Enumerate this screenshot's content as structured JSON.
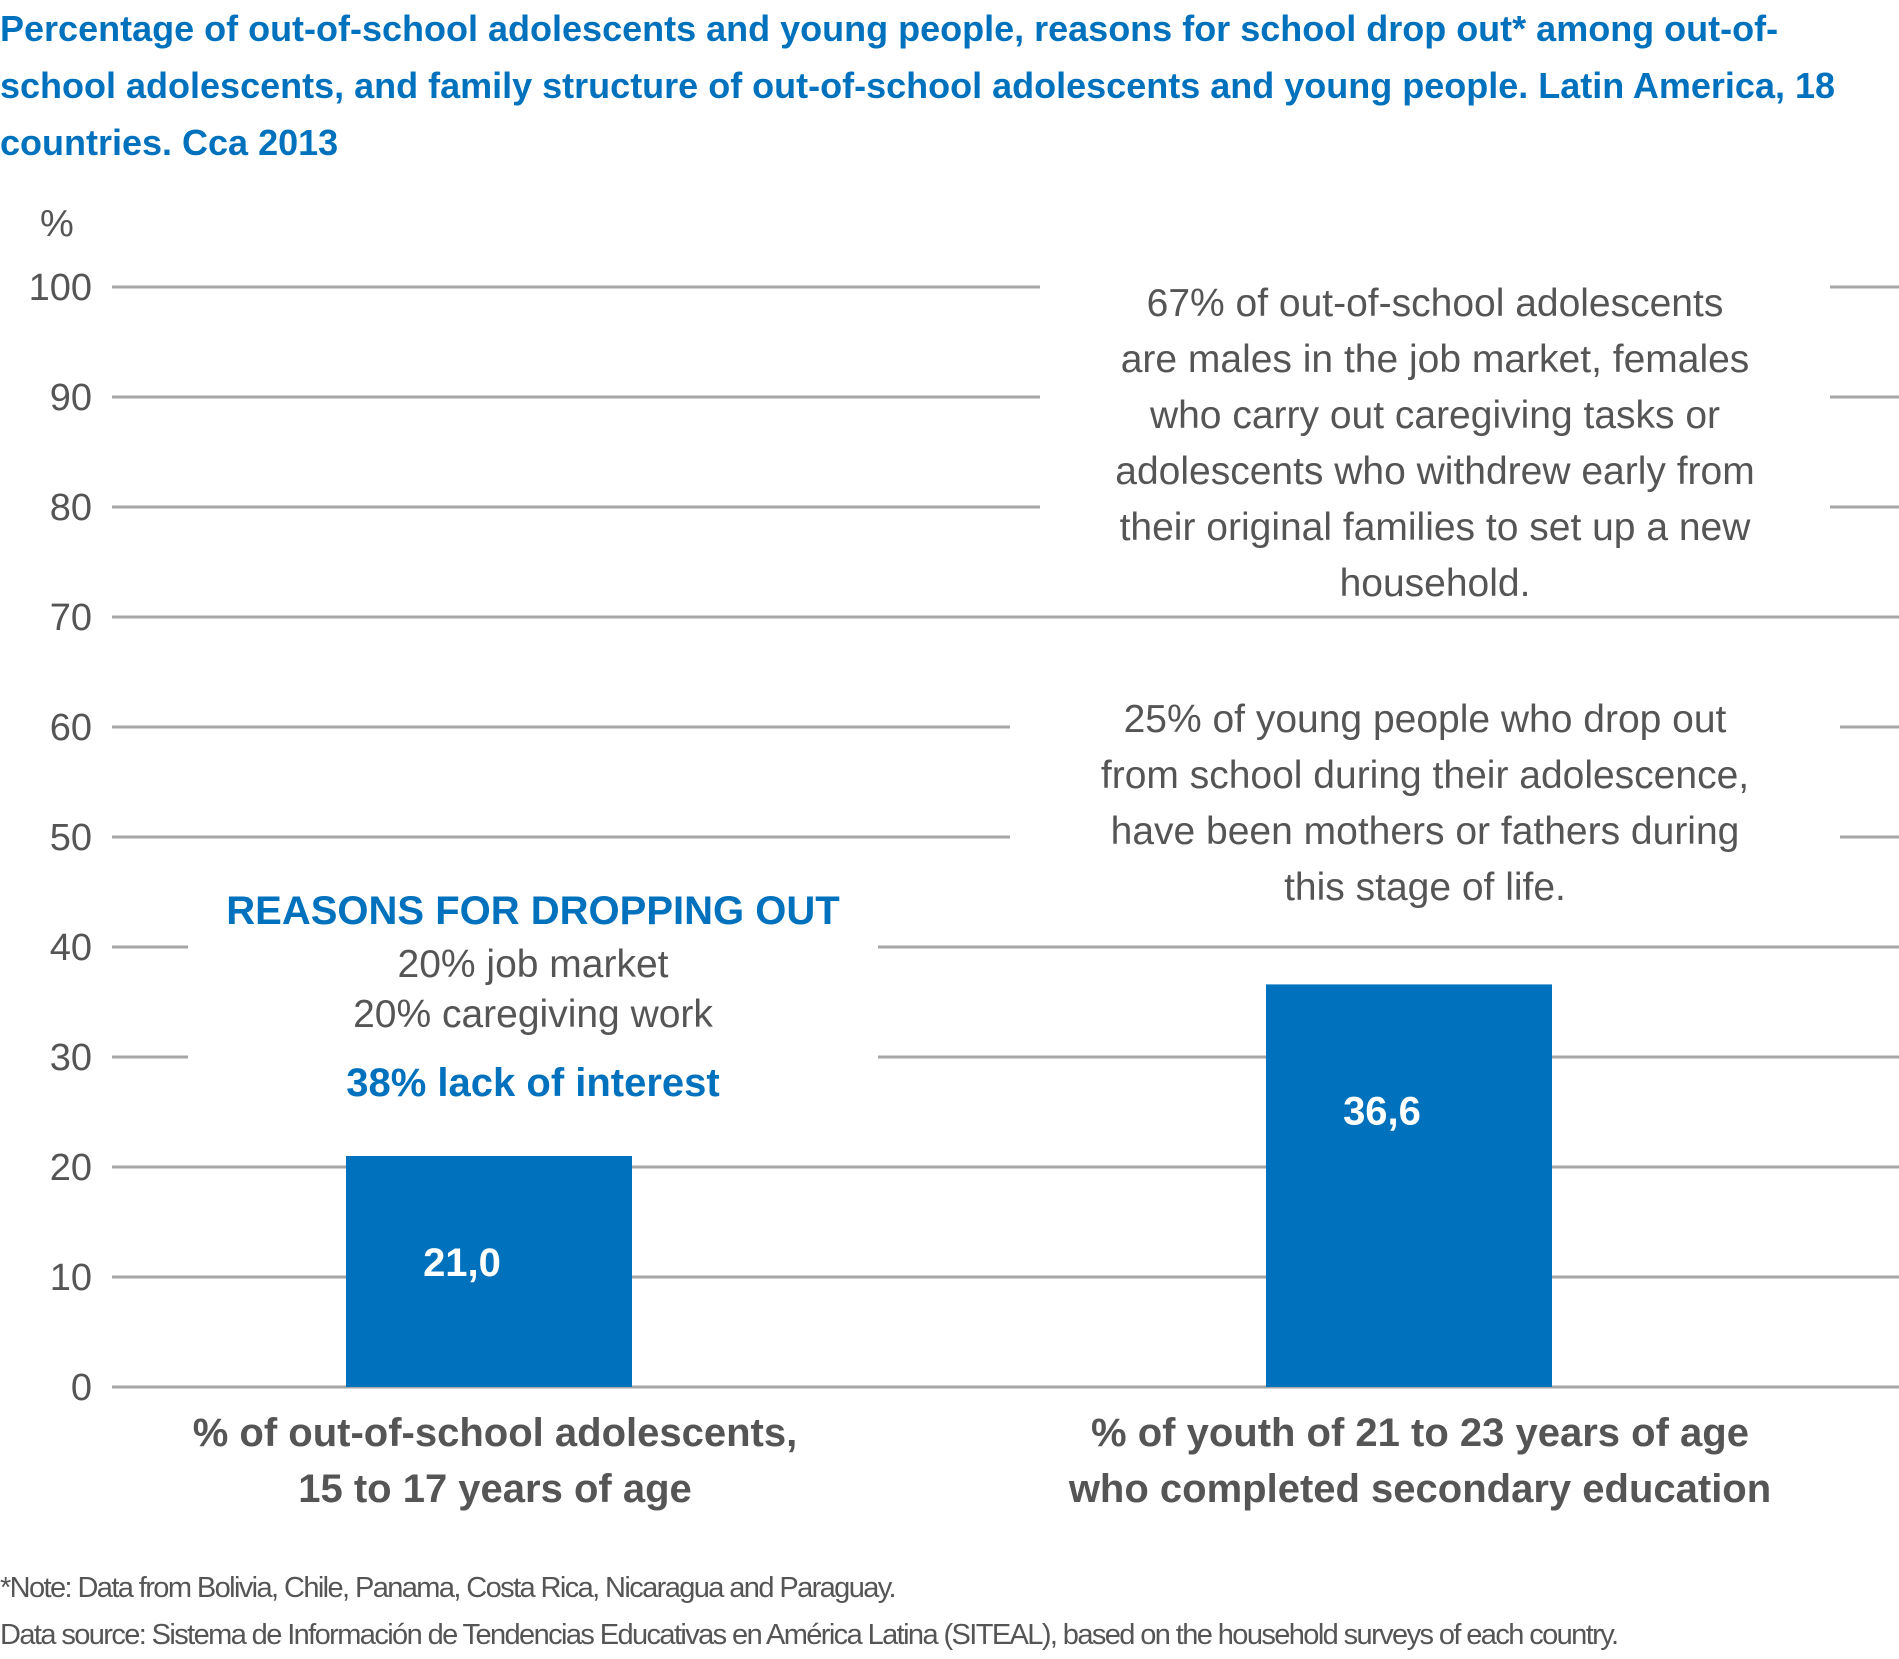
{
  "title": "Percentage of out-of-school adolescents and young people, reasons for school drop out* among out-of-school adolescents, and family structure of out-of-school adolescents and young people. Latin America, 18 countries. Cca 2013",
  "colors": {
    "accent": "#0071bc",
    "text": "#555555",
    "grid": "#a6a6a6",
    "bar_label": "#ffffff"
  },
  "chart_data": {
    "type": "bar",
    "title": "Percentage of out-of-school adolescents and young people, reasons for school drop out* among out-of-school adolescents, and family structure of out-of-school adolescents and young people. Latin America, 18 countries. Cca 2013",
    "ylabel": "%",
    "xlabel": "",
    "ylim": [
      0,
      100
    ],
    "yticks": [
      0,
      10,
      20,
      30,
      40,
      50,
      60,
      70,
      80,
      90,
      100
    ],
    "grid": true,
    "categories": [
      "% of out-of-school adolescents, 15 to 17 years of age",
      "% of youth of 21 to 23 years of age who completed secondary education"
    ],
    "values": [
      21.0,
      36.6
    ],
    "value_labels": [
      "21,0",
      "36,6"
    ]
  },
  "category_lines": [
    [
      "% of out-of-school adolescents,",
      "15 to 17 years of age"
    ],
    [
      "% of youth of 21 to 23 years of age",
      "who completed secondary education"
    ]
  ],
  "reasons": {
    "heading": "REASONS FOR DROPPING OUT",
    "lines": [
      "20% job market",
      "20% caregiving work"
    ],
    "highlight": "38% lack of interest"
  },
  "annotations": [
    [
      "67% of out-of-school adolescents",
      "are males in the job market, females",
      "who carry out caregiving tasks or",
      "adolescents who withdrew early from",
      "their original families to set up a new",
      "household."
    ],
    [
      "25% of young people who drop out",
      "from school during their adolescence,",
      "have been mothers or fathers during",
      "this stage of life."
    ]
  ],
  "notes": [
    "*Note: Data from Bolivia, Chile, Panama, Costa Rica, Nicaragua and Paraguay.",
    "Data source: Sistema de Información de Tendencias Educativas en América Latina (SITEAL), based on the household surveys of each country."
  ]
}
